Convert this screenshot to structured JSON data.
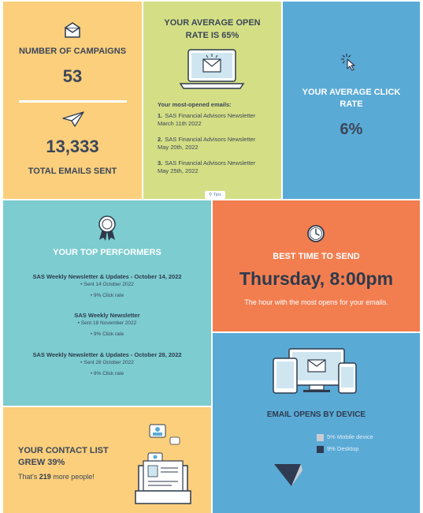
{
  "campaigns": {
    "label": "NUMBER OF CAMPAIGNS",
    "count": "53",
    "emails_sent": "13,333",
    "emails_label": "TOTAL EMAILS SENT",
    "icon": "envelope-icon",
    "send_icon": "paper-plane-icon"
  },
  "open_rate": {
    "title": "YOUR AVERAGE OPEN RATE IS 65%",
    "list_heading": "Your most-opened emails:",
    "emails": [
      {
        "num": "1.",
        "name": "SAS Financial Advisors Newsletter",
        "date": "March 11th 2022"
      },
      {
        "num": "2.",
        "name": "SAS Financial Advisors Newsletter",
        "date": "May 20th, 2022"
      },
      {
        "num": "3.",
        "name": "SAS Financial Advisors Newsletter",
        "date": "May 25th, 2022"
      }
    ],
    "tips_label": "Tips",
    "icon": "laptop-email-icon"
  },
  "click_rate": {
    "title": "YOUR AVERAGE CLICK RATE",
    "value": "6%",
    "icon": "cursor-click-icon"
  },
  "top_performers": {
    "title": "YOUR TOP PERFORMERS",
    "items": [
      {
        "name": "SAS Weekly Newsletter & Updates - October 14, 2022",
        "sent": "• Sent 14 October 2022",
        "click": "• 9% Click rate"
      },
      {
        "name": "SAS Weekly Newsletter",
        "sent": "• Sent 18 November 2022",
        "click": "• 9% Click rate"
      },
      {
        "name": "SAS Weekly Newsletter & Updates - October 28, 2022",
        "sent": "• Sent 28 October 2022",
        "click": "• 9% Click rate"
      }
    ],
    "icon": "award-ribbon-icon"
  },
  "best_time": {
    "title": "BEST TIME TO SEND",
    "time": "Thursday, 8:00pm",
    "subtitle": "The hour with the most opens for your emails.",
    "icon": "clock-icon"
  },
  "devices": {
    "title": "EMAIL OPENS BY DEVICE",
    "legend": [
      {
        "label": "5% Mobile device",
        "color": "#c9cdd3"
      },
      {
        "label": "9% Desktop",
        "color": "#2f3b52"
      }
    ],
    "icon": "devices-icon"
  },
  "contact": {
    "title_line1": "YOUR CONTACT LIST",
    "title_line2": "GREW 39%",
    "sub_prefix": "That's ",
    "sub_count": "219",
    "sub_suffix": " more people!",
    "icon": "contact-card-icon"
  },
  "colors": {
    "yellow": "#fbcf7c",
    "green": "#d4df85",
    "blue": "#5aaad6",
    "teal": "#7cccd0",
    "orange": "#f27e50",
    "navy": "#2e3a4c"
  }
}
